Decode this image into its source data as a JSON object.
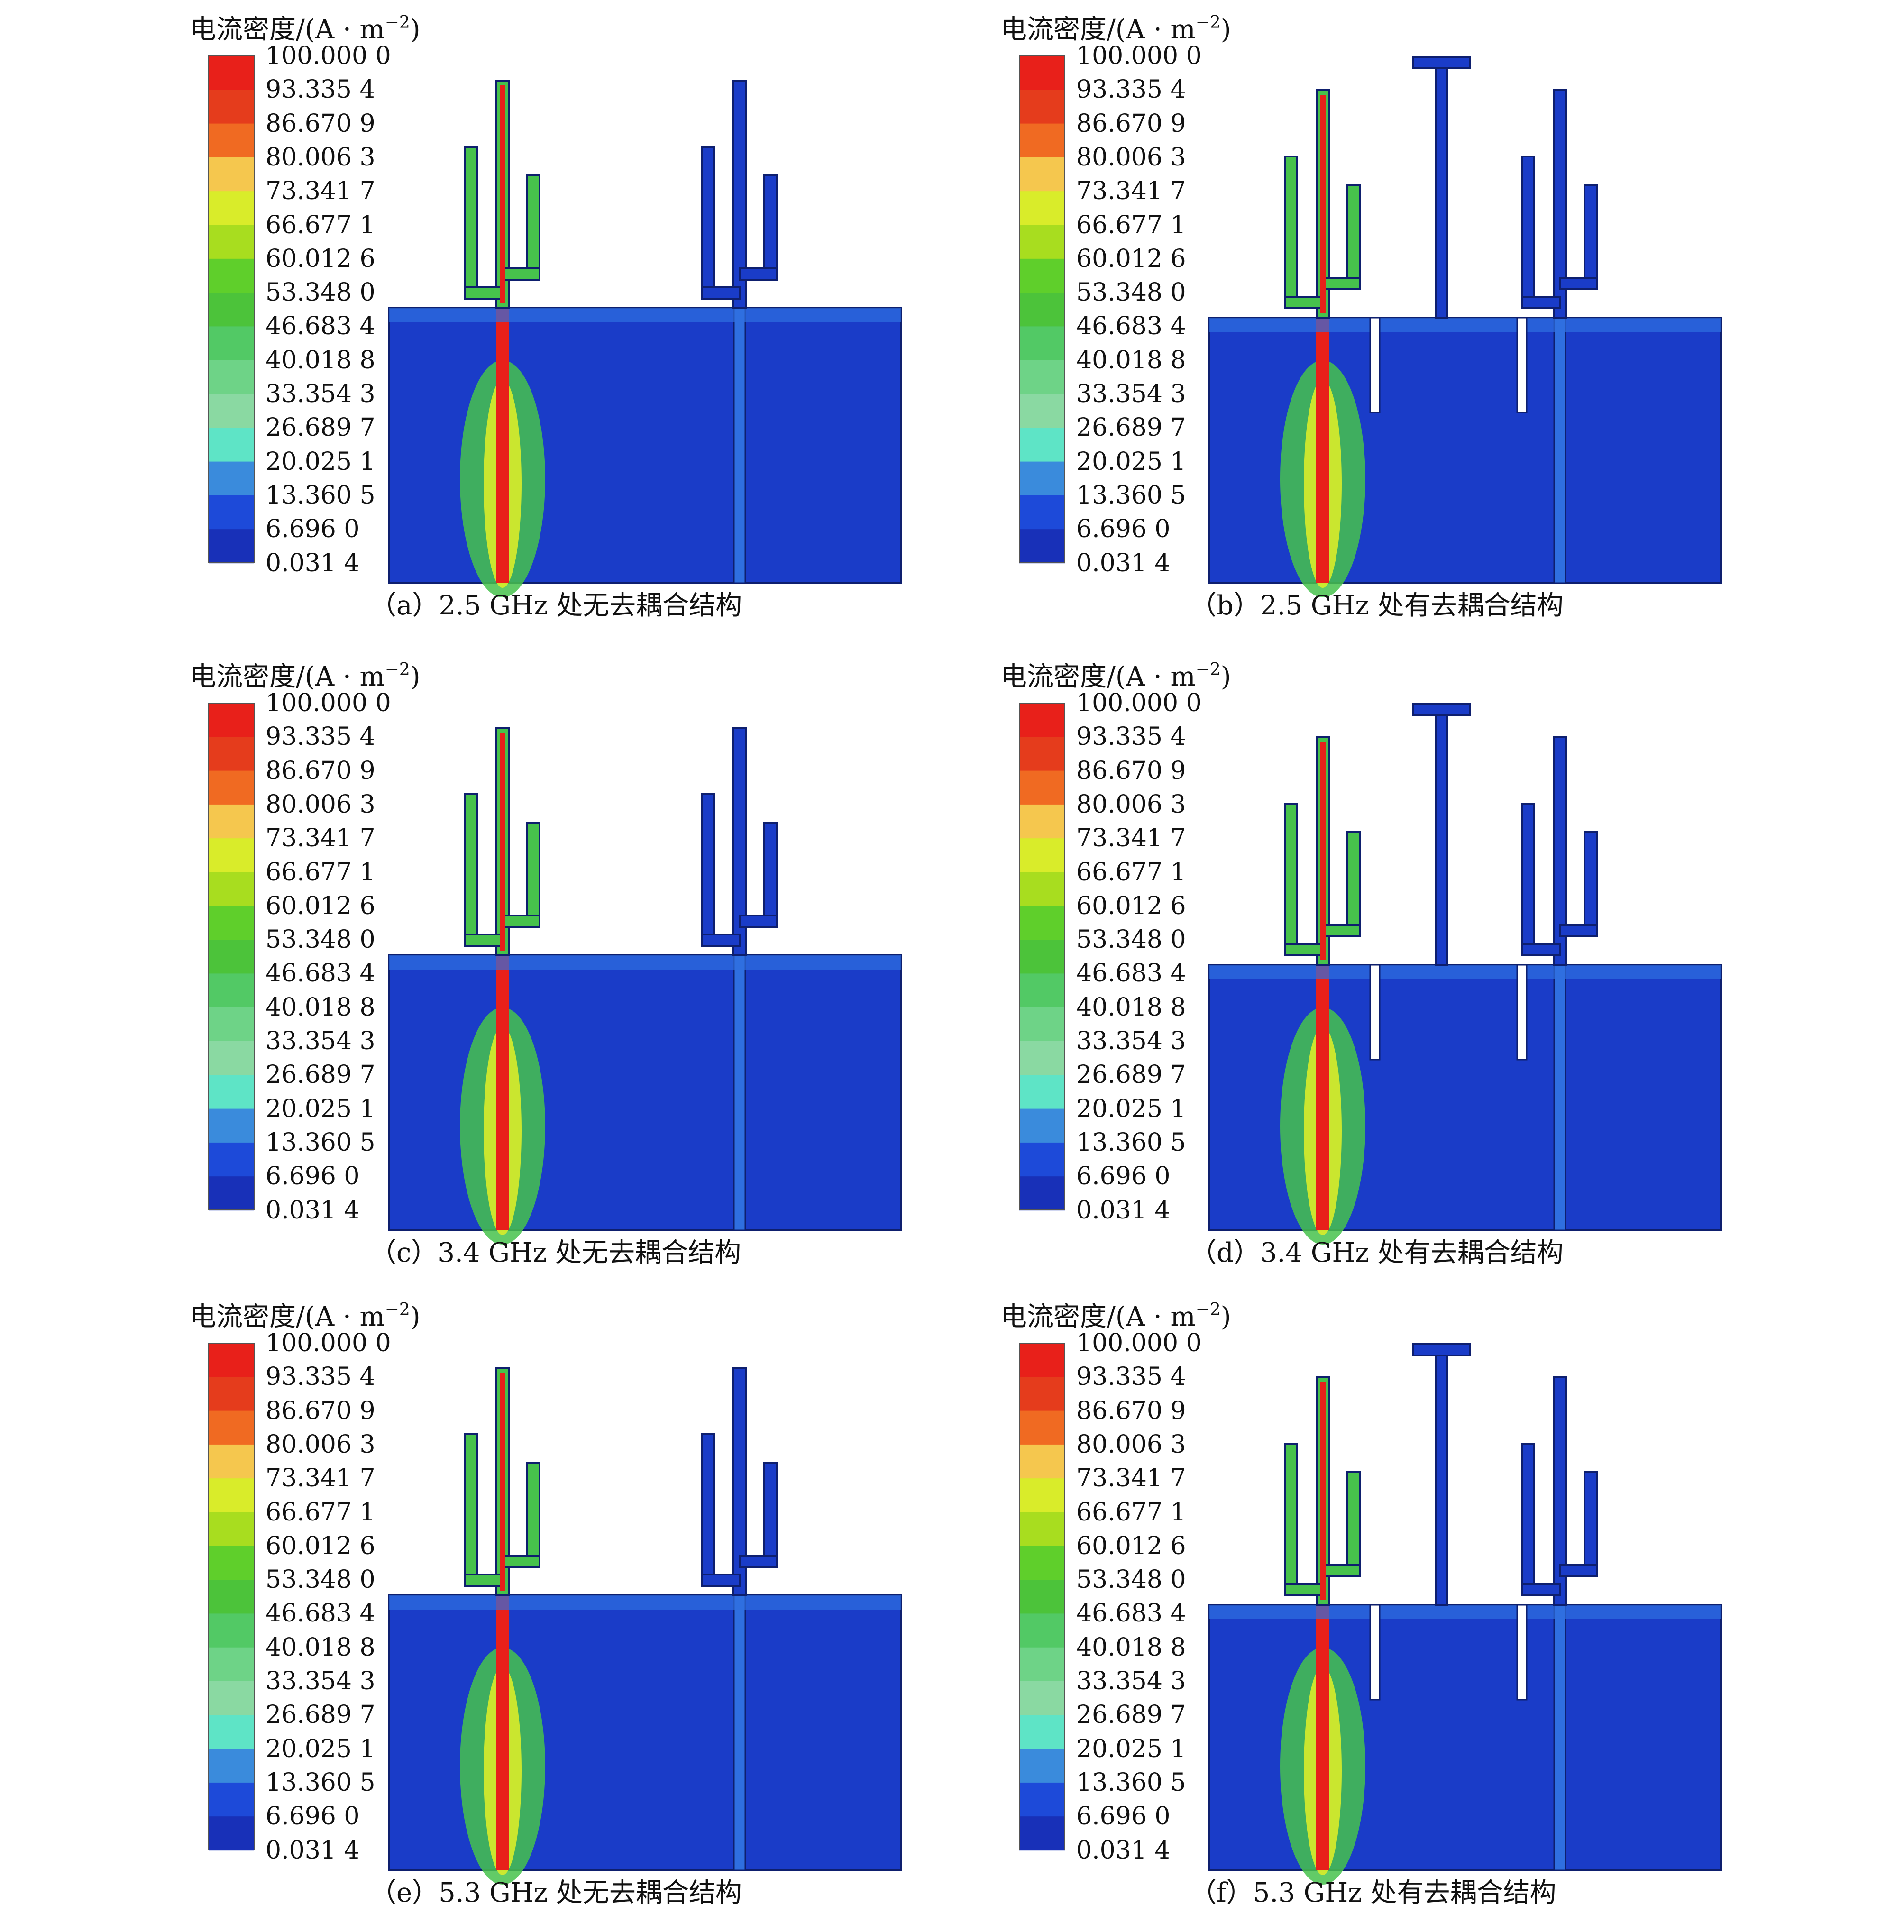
{
  "legend": {
    "unit_prefix": "电流密度/(A · m",
    "unit_exp": "−2",
    "unit_suffix": ")",
    "ticks": [
      "100.000 0",
      "93.335 4",
      "86.670 9",
      "80.006 3",
      "73.341 7",
      "66.677 1",
      "60.012 6",
      "53.348 0",
      "46.683 4",
      "40.018 8",
      "33.354 3",
      "26.689 7",
      "20.025 1",
      "13.360 5",
      "6.696 0",
      "0.031 4"
    ],
    "band_colors": [
      "#e8201a",
      "#e53c1c",
      "#f06a22",
      "#f5c74e",
      "#d9ec2a",
      "#a8dd1f",
      "#5fcf2b",
      "#4cc33a",
      "#52c965",
      "#6ed387",
      "#8ad9a2",
      "#5ee4c6",
      "#3a8bdc",
      "#1d4ad9",
      "#1830b8"
    ]
  },
  "colors": {
    "substrate": "#1a3cc8",
    "high": "#e8201a",
    "mid": "#47c24c",
    "low": "#2f6fe0",
    "outline": "#0e1f6e"
  },
  "panels": [
    {
      "caption": "（a）2.5 GHz 处无去耦合结构",
      "decoupled": false
    },
    {
      "caption": "（b）2.5 GHz 处有去耦合结构",
      "decoupled": true
    },
    {
      "caption": "（c）3.4 GHz 处无去耦合结构",
      "decoupled": false
    },
    {
      "caption": "（d）3.4 GHz 处有去耦合结构",
      "decoupled": true
    },
    {
      "caption": "（e）5.3 GHz 处无去耦合结构",
      "decoupled": false
    },
    {
      "caption": "（f）5.3 GHz 处有去耦合结构",
      "decoupled": true
    }
  ]
}
